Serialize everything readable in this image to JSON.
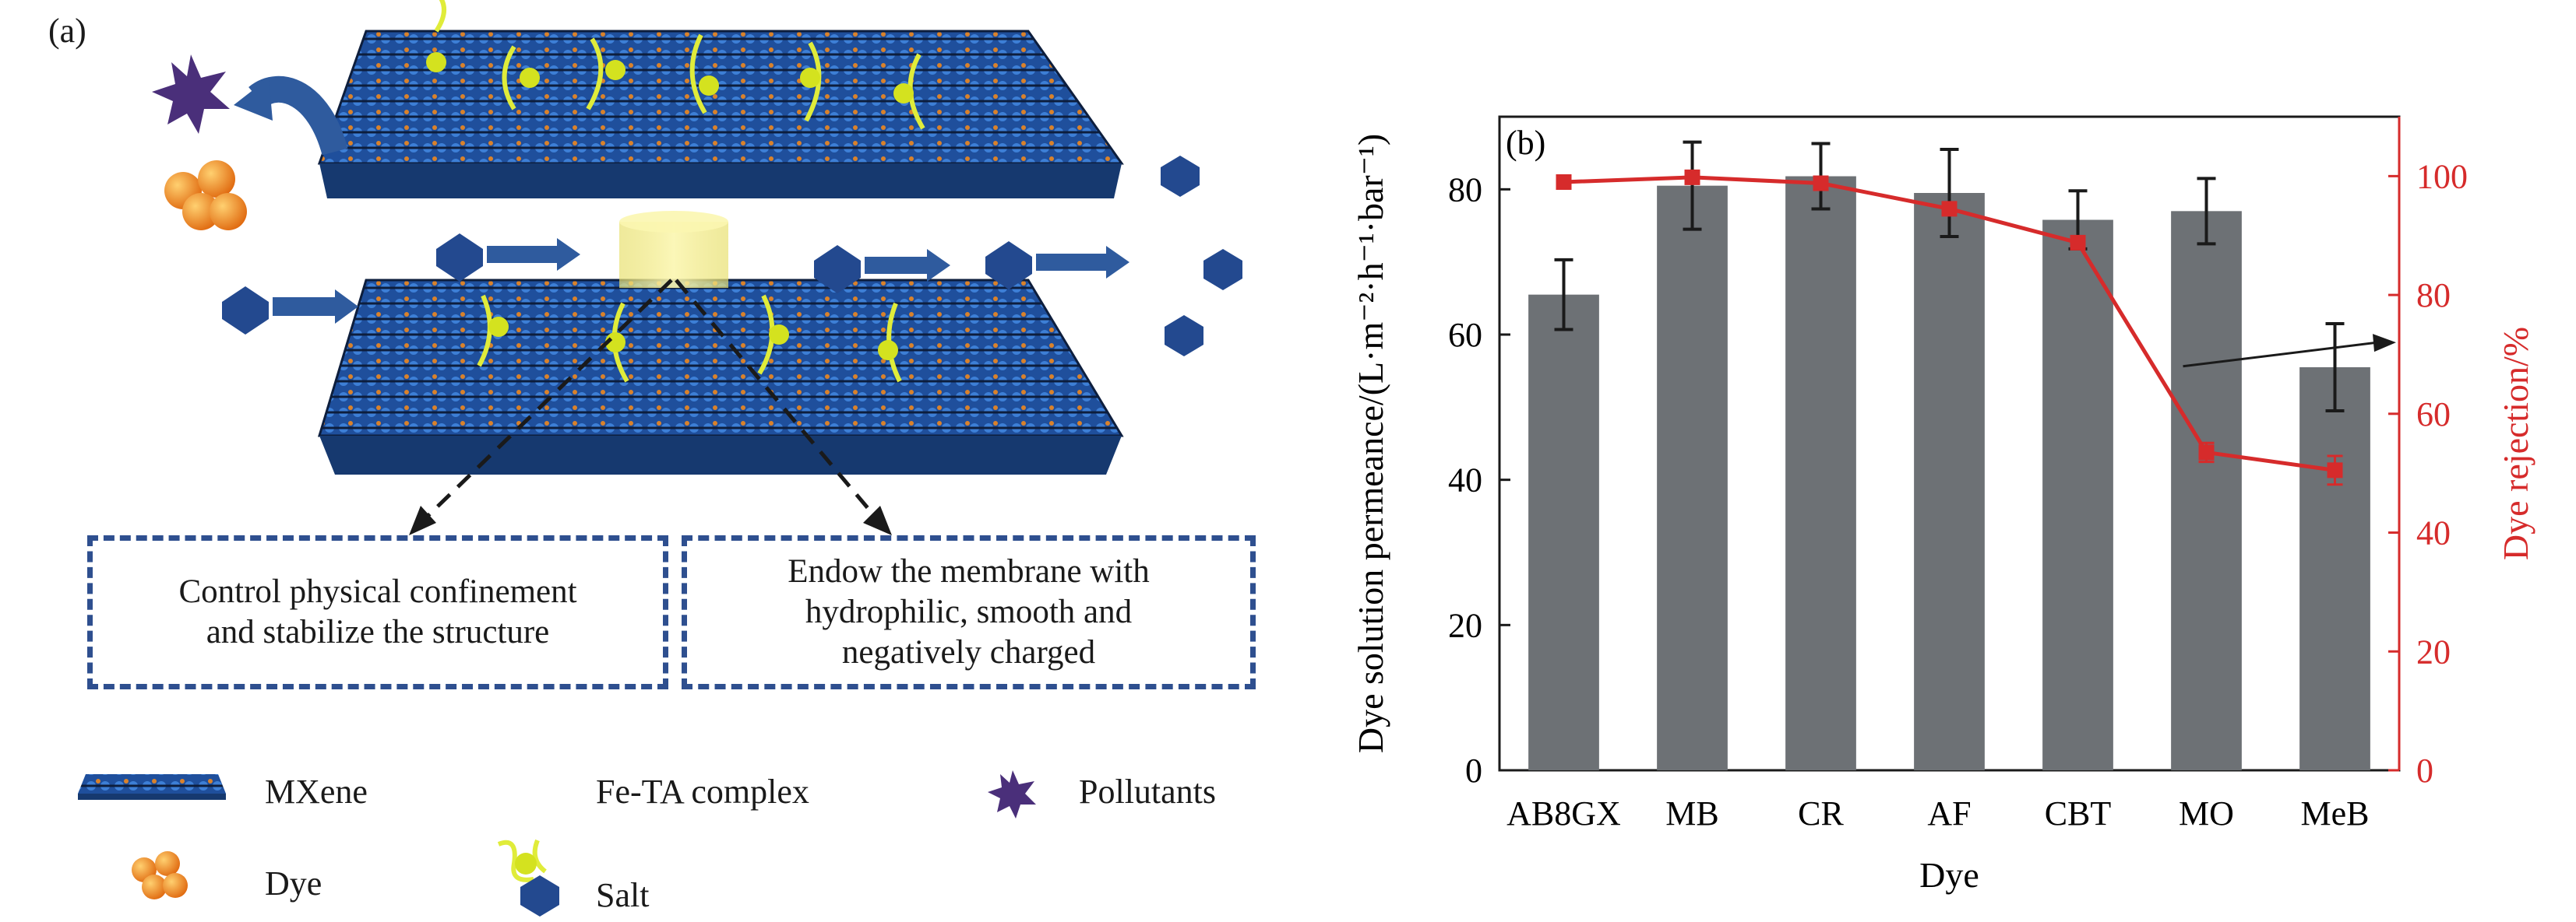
{
  "panel_a": {
    "tag": "(a)",
    "caption_left": [
      "Control physical confinement",
      "and stabilize the structure"
    ],
    "caption_right": [
      "Endow the membrane with",
      "hydrophilic, smooth and",
      "negatively charged"
    ],
    "legend": {
      "mxene": "MXene",
      "fe_ta": "Fe-TA complex",
      "pollutants": "Pollutants",
      "dye": "Dye",
      "salt": "Salt"
    }
  },
  "chart_data": {
    "type": "bar",
    "tag": "(b)",
    "categories": [
      "AB8GX",
      "MB",
      "CR",
      "AF",
      "CBT",
      "MO",
      "MeB"
    ],
    "xlabel": "Dye",
    "ylabel": "Dye solution permeance/(L·m⁻²·h⁻¹·bar⁻¹)",
    "ylim": [
      0,
      90
    ],
    "y_ticks": [
      "0",
      "20",
      "40",
      "60",
      "80"
    ],
    "y2label": "Dye rejection/%",
    "y2lim": [
      0,
      110
    ],
    "y2_ticks": [
      "0",
      "20",
      "40",
      "60",
      "80",
      "100"
    ],
    "series": [
      {
        "kind": "bar",
        "axis": "left",
        "values": [
          65.5,
          80.5,
          81.8,
          79.5,
          75.8,
          77.0,
          55.5
        ],
        "errors": [
          4.8,
          6.0,
          4.5,
          6.0,
          4.0,
          4.5,
          6.0
        ],
        "color": "#6d7175"
      },
      {
        "kind": "line",
        "axis": "right",
        "values": [
          99.0,
          99.8,
          98.8,
          94.5,
          88.8,
          53.5,
          50.5
        ],
        "errors": [
          0.6,
          0.8,
          0.6,
          0.6,
          0.8,
          1.6,
          2.4
        ],
        "color": "#d62b2b"
      }
    ],
    "annotation": "arrow pointing from the rejection line to the right axis",
    "grid": false
  }
}
